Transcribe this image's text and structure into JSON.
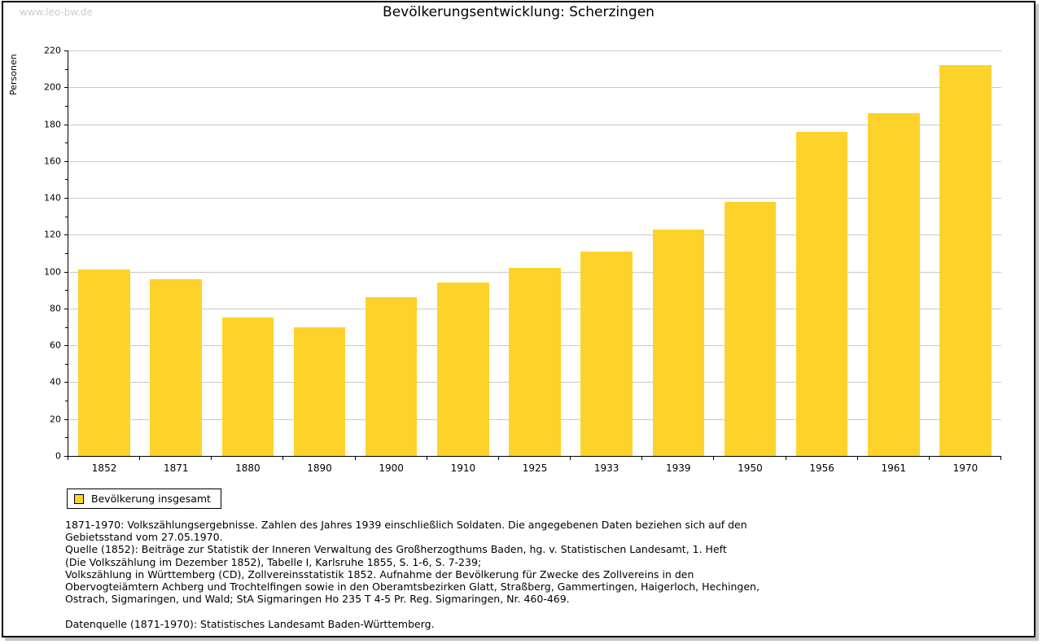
{
  "watermark": "www.leo-bw.de",
  "title": "Bevölkerungsentwicklung: Scherzingen",
  "chart_data": {
    "type": "bar",
    "title": "Bevölkerungsentwicklung: Scherzingen",
    "categories": [
      "1852",
      "1871",
      "1880",
      "1890",
      "1900",
      "1910",
      "1925",
      "1933",
      "1939",
      "1950",
      "1956",
      "1961",
      "1970"
    ],
    "values": [
      101,
      96,
      75,
      70,
      86,
      94,
      102,
      111,
      123,
      138,
      176,
      186,
      212
    ],
    "series_name": "Bevölkerung insgesamt",
    "xlabel": "",
    "ylabel": "Personen",
    "ylim": [
      0,
      220
    ],
    "ytick_step": 20,
    "yminor_step": 10,
    "grid": true,
    "bar_color": "#fdd32b",
    "legend_position": "bottom-left"
  },
  "legend": {
    "label": "Bevölkerung insgesamt",
    "swatch_color": "#fdd32b"
  },
  "footnotes": [
    "1871-1970: Volkszählungsergebnisse. Zahlen des Jahres 1939 einschließlich Soldaten. Die angegebenen Daten beziehen sich auf den",
    "Gebietsstand vom 27.05.1970.",
    "Quelle (1852): Beiträge zur Statistik der Inneren Verwaltung des Großherzogthums Baden, hg. v. Statistischen Landesamt, 1. Heft",
    "(Die Volkszählung im Dezember 1852), Tabelle I, Karlsruhe 1855, S. 1-6, S. 7-239;",
    "Volkszählung in Württemberg (CD), Zollvereinsstatistik 1852. Aufnahme der Bevölkerung für Zwecke des Zollvereins in den",
    "Obervogteiämtern Achberg und Trochtelfingen sowie in den Oberamtsbezirken Glatt, Straßberg, Gammertingen, Haigerloch, Hechingen,",
    "Ostrach, Sigmaringen, und Wald; StA Sigmaringen Ho 235 T 4-5 Pr. Reg. Sigmaringen, Nr. 460-469."
  ],
  "datasource": "Datenquelle (1871-1970): Statistisches Landesamt Baden-Württemberg."
}
